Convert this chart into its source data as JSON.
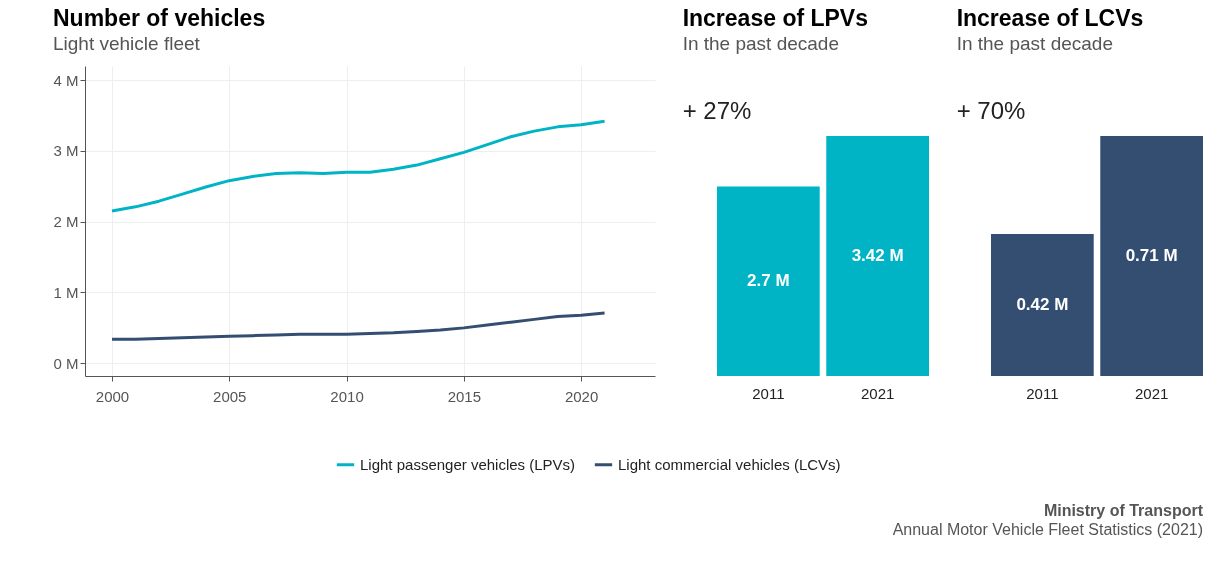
{
  "chart_data": [
    {
      "type": "line",
      "title": "Number of vehicles",
      "subtitle": "Light vehicle fleet",
      "x": [
        2000,
        2001,
        2002,
        2003,
        2004,
        2005,
        2006,
        2007,
        2008,
        2009,
        2010,
        2011,
        2012,
        2013,
        2014,
        2015,
        2016,
        2017,
        2018,
        2019,
        2020,
        2021
      ],
      "series": [
        {
          "name": "Light passenger vehicles (LPVs)",
          "color": "#00b4c5",
          "values": [
            2.15,
            2.21,
            2.29,
            2.39,
            2.49,
            2.58,
            2.64,
            2.68,
            2.69,
            2.68,
            2.7,
            2.7,
            2.74,
            2.8,
            2.89,
            2.98,
            3.09,
            3.2,
            3.28,
            3.34,
            3.37,
            3.42
          ]
        },
        {
          "name": "Light commercial vehicles (LCVs)",
          "color": "#344e72",
          "values": [
            0.34,
            0.34,
            0.35,
            0.36,
            0.37,
            0.38,
            0.39,
            0.4,
            0.41,
            0.41,
            0.41,
            0.42,
            0.43,
            0.45,
            0.47,
            0.5,
            0.54,
            0.58,
            0.62,
            0.66,
            0.68,
            0.71
          ]
        }
      ],
      "xlim": [
        1998.85,
        2023.15
      ],
      "xticks": [
        2000,
        2005,
        2010,
        2015,
        2020
      ],
      "ylim": [
        -0.18,
        4.2
      ],
      "yticks": [
        {
          "value": 0,
          "label": "0 M"
        },
        {
          "value": 1,
          "label": "1 M"
        },
        {
          "value": 2,
          "label": "2 M"
        },
        {
          "value": 3,
          "label": "3 M"
        },
        {
          "value": 4,
          "label": "4 M"
        }
      ],
      "grid": true,
      "legend": "bottom",
      "line_style": "solid",
      "marker": "none",
      "annotations": [
        "Ministry of Transport",
        "Annual Motor Vehicle Fleet Statistics (2021)"
      ]
    },
    {
      "type": "bar",
      "title": "Increase of LPVs",
      "subtitle": "In the past decade",
      "categories": [
        "2011",
        "2021"
      ],
      "values": [
        2.7,
        3.42
      ],
      "value_labels": [
        "2.7 M",
        "3.42 M"
      ],
      "color": "#00b4c5",
      "annotations": [
        "+ 27%"
      ]
    },
    {
      "type": "bar",
      "title": "Increase of LCVs",
      "subtitle": "In the past decade",
      "categories": [
        "2011",
        "2021"
      ],
      "values": [
        0.42,
        0.71
      ],
      "value_labels": [
        "0.42 M",
        "0.71 M"
      ],
      "color": "#344e72",
      "annotations": [
        "+ 70%"
      ]
    }
  ]
}
